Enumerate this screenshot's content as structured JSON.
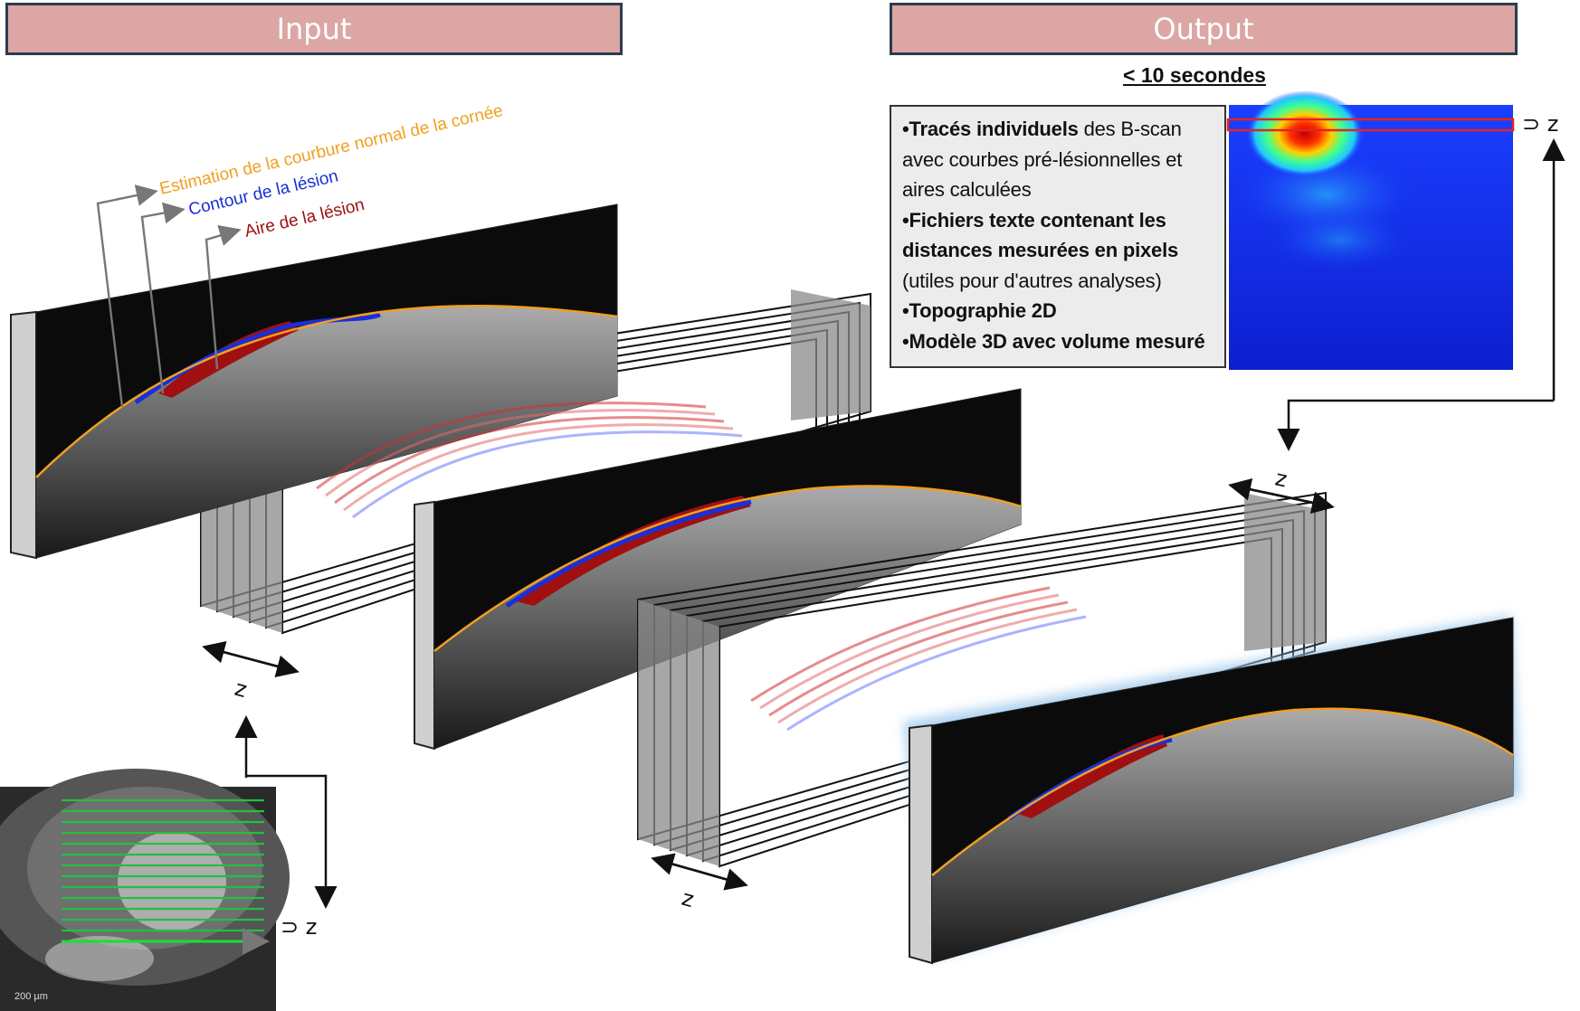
{
  "headers": {
    "input": "Input",
    "output": "Output"
  },
  "time_label": "< 10 secondes",
  "output_list": [
    {
      "bold": "•Tracés individuels",
      "rest": " des B-scan avec courbes pré-lésionnelles et aires calculées"
    },
    {
      "bold": "•Fichiers texte contenant les distances mesurées en pixels",
      "rest": " (utiles pour d'autres analyses)"
    },
    {
      "bold": "•Topographie 2D",
      "rest": ""
    },
    {
      "bold": "•Modèle 3D avec volume mesuré",
      "rest": ""
    }
  ],
  "annotations": {
    "curvature": "Estimation de la courbure normal de la cornée",
    "contour": "Contour de la lésion",
    "area": "Aire de la lésion"
  },
  "colors": {
    "curvature": "#f0a020",
    "contour": "#1a2fd6",
    "area": "#a01010",
    "header_bg": "#dba6a4",
    "header_border": "#2d3b4f"
  },
  "axis_label": "z",
  "depth_symbol": "⊃ z",
  "scale_bar": "200 µm"
}
